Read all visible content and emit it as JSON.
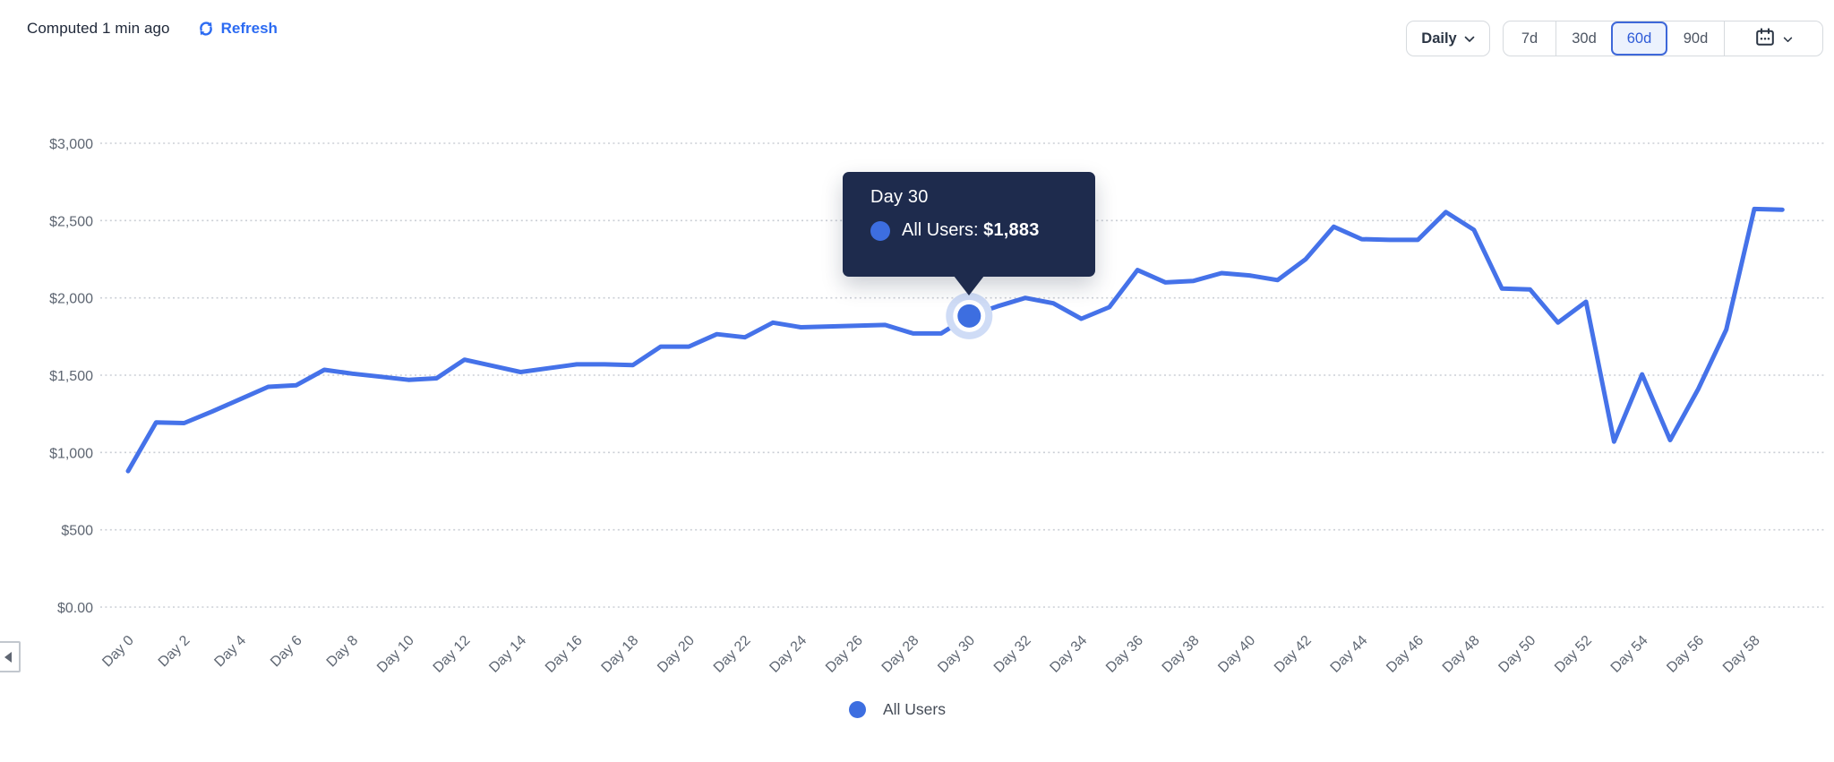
{
  "header": {
    "computed_text": "Computed 1 min ago",
    "refresh_label": "Refresh",
    "granularity": {
      "label": "Daily"
    },
    "ranges": [
      {
        "label": "7d",
        "active": false
      },
      {
        "label": "30d",
        "active": false
      },
      {
        "label": "60d",
        "active": true
      },
      {
        "label": "90d",
        "active": false
      }
    ]
  },
  "tooltip": {
    "title": "Day 30",
    "series_label": "All Users:",
    "value": "$1,883",
    "day_index": 30
  },
  "legend": {
    "items": [
      {
        "label": "All Users",
        "color": "#3d6ee0"
      }
    ]
  },
  "colors": {
    "line": "#4572e9",
    "accent_blue": "#2c6bf2",
    "tooltip_bg": "#1e2b4d",
    "gridline": "#cbcfd6",
    "axis_text": "#5e6672",
    "active_range_border": "#3e68d9",
    "active_range_bg": "#ecf2fd"
  },
  "chart_data": {
    "type": "line",
    "title": "",
    "xlabel": "",
    "ylabel": "",
    "ylim": [
      0,
      3000
    ],
    "grid": "dotted-horizontal",
    "legend_position": "bottom",
    "x_tick_step": 2,
    "y_ticks": {
      "labels": [
        "$0.00",
        "$500",
        "$1,000",
        "$1,500",
        "$2,000",
        "$2,500",
        "$3,000"
      ],
      "values": [
        0,
        500,
        1000,
        1500,
        2000,
        2500,
        3000
      ]
    },
    "categories": [
      "Day 0",
      "Day 1",
      "Day 2",
      "Day 3",
      "Day 4",
      "Day 5",
      "Day 6",
      "Day 7",
      "Day 8",
      "Day 9",
      "Day 10",
      "Day 11",
      "Day 12",
      "Day 13",
      "Day 14",
      "Day 15",
      "Day 16",
      "Day 17",
      "Day 18",
      "Day 19",
      "Day 20",
      "Day 21",
      "Day 22",
      "Day 23",
      "Day 24",
      "Day 25",
      "Day 26",
      "Day 27",
      "Day 28",
      "Day 29",
      "Day 30",
      "Day 31",
      "Day 32",
      "Day 33",
      "Day 34",
      "Day 35",
      "Day 36",
      "Day 37",
      "Day 38",
      "Day 39",
      "Day 40",
      "Day 41",
      "Day 42",
      "Day 43",
      "Day 44",
      "Day 45",
      "Day 46",
      "Day 47",
      "Day 48",
      "Day 49",
      "Day 50",
      "Day 51",
      "Day 52",
      "Day 53",
      "Day 54",
      "Day 55",
      "Day 56",
      "Day 57",
      "Day 58",
      "Day 59"
    ],
    "series": [
      {
        "name": "All Users",
        "color": "#4572e9",
        "values": [
          880,
          1195,
          1190,
          1265,
          1345,
          1425,
          1435,
          1535,
          1510,
          1490,
          1470,
          1480,
          1600,
          1560,
          1520,
          1545,
          1570,
          1570,
          1565,
          1685,
          1685,
          1765,
          1745,
          1840,
          1810,
          1815,
          1820,
          1825,
          1770,
          1770,
          1883,
          1945,
          2000,
          1965,
          1865,
          1940,
          2180,
          2100,
          2110,
          2160,
          2145,
          2115,
          2250,
          2460,
          2380,
          2375,
          2375,
          2555,
          2440,
          2060,
          2055,
          1840,
          1975,
          1070,
          1505,
          1080,
          1410,
          1795,
          2575,
          2570
        ]
      }
    ]
  }
}
